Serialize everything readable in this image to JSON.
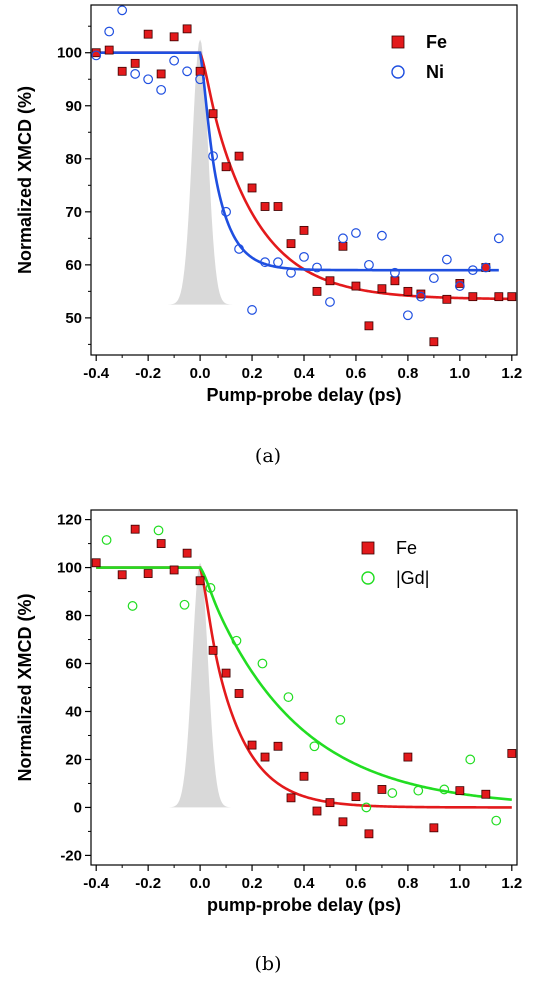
{
  "chart_data": [
    {
      "type": "scatter",
      "caption": "(a)",
      "xlabel": "Pump-probe delay (ps)",
      "ylabel": "Normalized XMCD (%)",
      "xlim": [
        -0.42,
        1.22
      ],
      "ylim": [
        43,
        109
      ],
      "xticks": [
        -0.4,
        -0.2,
        0.0,
        0.2,
        0.4,
        0.6,
        0.8,
        1.0,
        1.2
      ],
      "xtick_labels": [
        "-0.4",
        "-0.2",
        "0.0",
        "0.2",
        "0.4",
        "0.6",
        "0.8",
        "1.0",
        "1.2"
      ],
      "yticks": [
        50,
        60,
        70,
        80,
        90,
        100
      ],
      "ytick_labels": [
        "50",
        "60",
        "70",
        "80",
        "90",
        "100"
      ],
      "legend_position": "top-right",
      "grid": false,
      "pulse": {
        "center": 0.0,
        "sigma": 0.03,
        "peak": 102.5,
        "base": 52.5,
        "color": "#d9d9d9"
      },
      "series": [
        {
          "name": "Fe",
          "marker": "square",
          "color": "#e31a1c",
          "points": [
            [
              -0.4,
              100.0
            ],
            [
              -0.35,
              100.5
            ],
            [
              -0.3,
              96.5
            ],
            [
              -0.25,
              98.0
            ],
            [
              -0.2,
              103.5
            ],
            [
              -0.15,
              96.0
            ],
            [
              -0.1,
              103.0
            ],
            [
              -0.05,
              104.5
            ],
            [
              0.0,
              96.5
            ],
            [
              0.05,
              88.5
            ],
            [
              0.1,
              78.5
            ],
            [
              0.15,
              80.5
            ],
            [
              0.2,
              74.5
            ],
            [
              0.25,
              71.0
            ],
            [
              0.3,
              71.0
            ],
            [
              0.35,
              64.0
            ],
            [
              0.4,
              66.5
            ],
            [
              0.45,
              55.0
            ],
            [
              0.5,
              57.0
            ],
            [
              0.55,
              63.5
            ],
            [
              0.6,
              56.0
            ],
            [
              0.65,
              48.5
            ],
            [
              0.7,
              55.5
            ],
            [
              0.75,
              57.0
            ],
            [
              0.8,
              55.0
            ],
            [
              0.85,
              54.5
            ],
            [
              0.9,
              45.5
            ],
            [
              0.95,
              53.5
            ],
            [
              1.0,
              56.5
            ],
            [
              1.05,
              54.0
            ],
            [
              1.1,
              59.5
            ],
            [
              1.15,
              54.0
            ],
            [
              1.2,
              54.0
            ]
          ],
          "fit": {
            "y0": 100,
            "yinf": 53.5,
            "t0": 0.0,
            "tau": 0.19,
            "w": 0.03,
            "xmax": 1.2
          }
        },
        {
          "name": "Ni",
          "marker": "circle",
          "color": "#1f4fe0",
          "points": [
            [
              -0.4,
              99.5
            ],
            [
              -0.35,
              104.0
            ],
            [
              -0.3,
              108.0
            ],
            [
              -0.25,
              96.0
            ],
            [
              -0.2,
              95.0
            ],
            [
              -0.15,
              93.0
            ],
            [
              -0.1,
              98.5
            ],
            [
              -0.05,
              96.5
            ],
            [
              0.0,
              95.0
            ],
            [
              0.05,
              80.5
            ],
            [
              0.1,
              70.0
            ],
            [
              0.15,
              63.0
            ],
            [
              0.2,
              51.5
            ],
            [
              0.25,
              60.5
            ],
            [
              0.3,
              60.5
            ],
            [
              0.35,
              58.5
            ],
            [
              0.4,
              61.5
            ],
            [
              0.45,
              59.5
            ],
            [
              0.5,
              53.0
            ],
            [
              0.55,
              65.0
            ],
            [
              0.6,
              66.0
            ],
            [
              0.65,
              60.0
            ],
            [
              0.7,
              65.5
            ],
            [
              0.75,
              58.5
            ],
            [
              0.8,
              50.5
            ],
            [
              0.85,
              54.0
            ],
            [
              0.9,
              57.5
            ],
            [
              0.95,
              61.0
            ],
            [
              1.0,
              56.0
            ],
            [
              1.05,
              59.0
            ],
            [
              1.1,
              59.5
            ],
            [
              1.15,
              65.0
            ]
          ],
          "fit": {
            "y0": 100,
            "yinf": 59,
            "t0": 0.0,
            "tau": 0.07,
            "w": 0.025,
            "xmax": 1.15
          }
        }
      ]
    },
    {
      "type": "scatter",
      "caption": "(b)",
      "xlabel": "pump-probe delay (ps)",
      "ylabel": "Normalized XMCD (%)",
      "xlim": [
        -0.42,
        1.22
      ],
      "ylim": [
        -24,
        124
      ],
      "xticks": [
        -0.4,
        -0.2,
        0.0,
        0.2,
        0.4,
        0.6,
        0.8,
        1.0,
        1.2
      ],
      "xtick_labels": [
        "-0.4",
        "-0.2",
        "0.0",
        "0.2",
        "0.4",
        "0.6",
        "0.8",
        "1.0",
        "1.2"
      ],
      "yticks": [
        -20,
        0,
        20,
        40,
        60,
        80,
        100,
        120
      ],
      "ytick_labels": [
        "-20",
        "0",
        "20",
        "40",
        "60",
        "80",
        "100",
        "120"
      ],
      "legend_position": "top-right",
      "grid": false,
      "pulse": {
        "center": 0.0,
        "sigma": 0.03,
        "peak": 102.0,
        "base": 0.0,
        "color": "#d9d9d9"
      },
      "series": [
        {
          "name": "Fe",
          "marker": "square",
          "color": "#e31a1c",
          "points": [
            [
              -0.4,
              102.0
            ],
            [
              -0.3,
              97.0
            ],
            [
              -0.25,
              116.0
            ],
            [
              -0.2,
              97.5
            ],
            [
              -0.15,
              110.0
            ],
            [
              -0.1,
              99.0
            ],
            [
              -0.05,
              106.0
            ],
            [
              0.0,
              94.5
            ],
            [
              0.05,
              65.5
            ],
            [
              0.1,
              56.0
            ],
            [
              0.15,
              47.5
            ],
            [
              0.2,
              26.0
            ],
            [
              0.25,
              21.0
            ],
            [
              0.3,
              25.5
            ],
            [
              0.35,
              4.0
            ],
            [
              0.4,
              13.0
            ],
            [
              0.45,
              -1.5
            ],
            [
              0.5,
              2.0
            ],
            [
              0.55,
              -6.0
            ],
            [
              0.6,
              4.5
            ],
            [
              0.65,
              -11.0
            ],
            [
              0.7,
              7.5
            ],
            [
              0.8,
              21.0
            ],
            [
              0.9,
              -8.5
            ],
            [
              1.0,
              7.0
            ],
            [
              1.1,
              5.5
            ],
            [
              1.2,
              22.5
            ]
          ],
          "fit": {
            "y0": 100,
            "yinf": 0,
            "t0": 0.0,
            "tau": 0.13,
            "w": 0.03,
            "xmax": 1.2
          }
        },
        {
          "name": "|Gd|",
          "marker": "circle",
          "color": "#22dd22",
          "points": [
            [
              -0.36,
              111.5
            ],
            [
              -0.26,
              84.0
            ],
            [
              -0.16,
              115.5
            ],
            [
              -0.06,
              84.5
            ],
            [
              0.04,
              91.5
            ],
            [
              0.14,
              69.5
            ],
            [
              0.24,
              60.0
            ],
            [
              0.34,
              46.0
            ],
            [
              0.44,
              25.5
            ],
            [
              0.54,
              36.5
            ],
            [
              0.64,
              0.0
            ],
            [
              0.74,
              6.0
            ],
            [
              0.84,
              7.0
            ],
            [
              0.94,
              7.5
            ],
            [
              1.04,
              20.0
            ],
            [
              1.14,
              -5.5
            ]
          ],
          "fit": {
            "y0": 100,
            "yinf": 0,
            "t0": 0.0,
            "tau": 0.35,
            "w": 0.03,
            "xmax": 1.2
          }
        }
      ]
    }
  ]
}
